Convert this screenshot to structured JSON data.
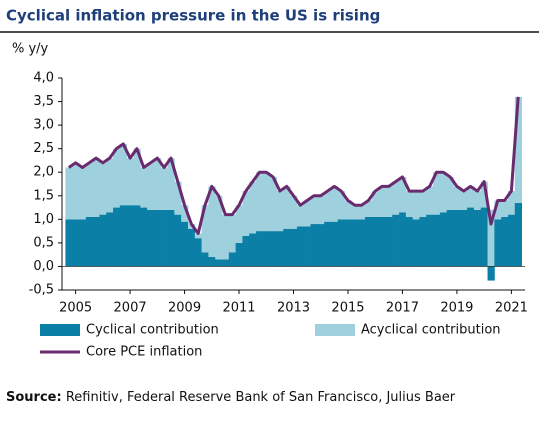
{
  "chart_data": {
    "type": "stacked-bar-line",
    "title": "Cyclical inflation pressure in the US is rising",
    "y_label": "% y/y",
    "source_label": "Source:",
    "source": "Refinitiv, Federal Reserve Bank of San Francisco, Julius Baer",
    "x": [
      2004.75,
      2005,
      2005.25,
      2005.5,
      2005.75,
      2006,
      2006.25,
      2006.5,
      2006.75,
      2007,
      2007.25,
      2007.5,
      2007.75,
      2008,
      2008.25,
      2008.5,
      2008.75,
      2009,
      2009.25,
      2009.5,
      2009.75,
      2010,
      2010.25,
      2010.5,
      2010.75,
      2011,
      2011.25,
      2011.5,
      2011.75,
      2012,
      2012.25,
      2012.5,
      2012.75,
      2013,
      2013.25,
      2013.5,
      2013.75,
      2014,
      2014.25,
      2014.5,
      2014.75,
      2015,
      2015.25,
      2015.5,
      2015.75,
      2016,
      2016.25,
      2016.5,
      2016.75,
      2017,
      2017.25,
      2017.5,
      2017.75,
      2018,
      2018.25,
      2018.5,
      2018.75,
      2019,
      2019.25,
      2019.5,
      2019.75,
      2020,
      2020.25,
      2020.5,
      2020.75,
      2021,
      2021.25
    ],
    "series": [
      {
        "name": "Cyclical contribution",
        "color": "#0b7fa5",
        "kind": "bar",
        "values": [
          1.0,
          1.0,
          1.0,
          1.05,
          1.05,
          1.1,
          1.15,
          1.25,
          1.3,
          1.3,
          1.3,
          1.25,
          1.2,
          1.2,
          1.2,
          1.2,
          1.1,
          0.95,
          0.8,
          0.6,
          0.3,
          0.2,
          0.15,
          0.15,
          0.3,
          0.5,
          0.65,
          0.7,
          0.75,
          0.75,
          0.75,
          0.75,
          0.8,
          0.8,
          0.85,
          0.85,
          0.9,
          0.9,
          0.95,
          0.95,
          1.0,
          1.0,
          1.0,
          1.0,
          1.05,
          1.05,
          1.05,
          1.05,
          1.1,
          1.15,
          1.05,
          1.0,
          1.05,
          1.1,
          1.1,
          1.15,
          1.2,
          1.2,
          1.2,
          1.25,
          1.2,
          1.25,
          -0.3,
          1.0,
          1.05,
          1.1,
          1.35
        ]
      },
      {
        "name": "Acyclical contribution",
        "color": "#9fd0de",
        "kind": "bar",
        "values": [
          1.1,
          1.2,
          1.1,
          1.15,
          1.25,
          1.1,
          1.15,
          1.25,
          1.3,
          1.0,
          1.2,
          0.85,
          1.0,
          1.1,
          0.9,
          1.1,
          0.7,
          0.35,
          0.1,
          0.1,
          1.0,
          1.5,
          1.35,
          0.95,
          0.8,
          0.8,
          0.95,
          1.1,
          1.25,
          1.25,
          1.15,
          0.85,
          0.9,
          0.7,
          0.45,
          0.55,
          0.6,
          0.6,
          0.65,
          0.75,
          0.6,
          0.4,
          0.3,
          0.3,
          0.35,
          0.55,
          0.65,
          0.65,
          0.7,
          0.75,
          0.55,
          0.6,
          0.55,
          0.6,
          0.9,
          0.85,
          0.7,
          0.5,
          0.4,
          0.45,
          0.4,
          0.55,
          1.2,
          0.4,
          0.35,
          0.5,
          2.25
        ]
      },
      {
        "name": "Core PCE inflation",
        "color": "#6a2a6e",
        "kind": "line",
        "values": [
          2.1,
          2.2,
          2.1,
          2.2,
          2.3,
          2.2,
          2.3,
          2.5,
          2.6,
          2.3,
          2.5,
          2.1,
          2.2,
          2.3,
          2.1,
          2.3,
          1.8,
          1.3,
          0.9,
          0.7,
          1.3,
          1.7,
          1.5,
          1.1,
          1.1,
          1.3,
          1.6,
          1.8,
          2.0,
          2.0,
          1.9,
          1.6,
          1.7,
          1.5,
          1.3,
          1.4,
          1.5,
          1.5,
          1.6,
          1.7,
          1.6,
          1.4,
          1.3,
          1.3,
          1.4,
          1.6,
          1.7,
          1.7,
          1.8,
          1.9,
          1.6,
          1.6,
          1.6,
          1.7,
          2.0,
          2.0,
          1.9,
          1.7,
          1.6,
          1.7,
          1.6,
          1.8,
          0.9,
          1.4,
          1.4,
          1.6,
          3.6
        ]
      }
    ],
    "xlim": [
      2004.5,
      2021.5
    ],
    "xticks": [
      2005,
      2007,
      2009,
      2011,
      2013,
      2015,
      2017,
      2019,
      2021
    ],
    "ylim": [
      -0.5,
      4.0
    ],
    "yticks": [
      {
        "value": 4,
        "label": "4,0"
      },
      {
        "value": 3.5,
        "label": "3,5"
      },
      {
        "value": 3,
        "label": "3,0"
      },
      {
        "value": 2.5,
        "label": "2,5"
      },
      {
        "value": 2,
        "label": "2,0"
      },
      {
        "value": 1.5,
        "label": "1,5"
      },
      {
        "value": 1,
        "label": "1,0"
      },
      {
        "value": 0.5,
        "label": "0,5"
      },
      {
        "value": 0,
        "label": "0,0"
      },
      {
        "value": -0.5,
        "label": "-0,5"
      }
    ]
  }
}
